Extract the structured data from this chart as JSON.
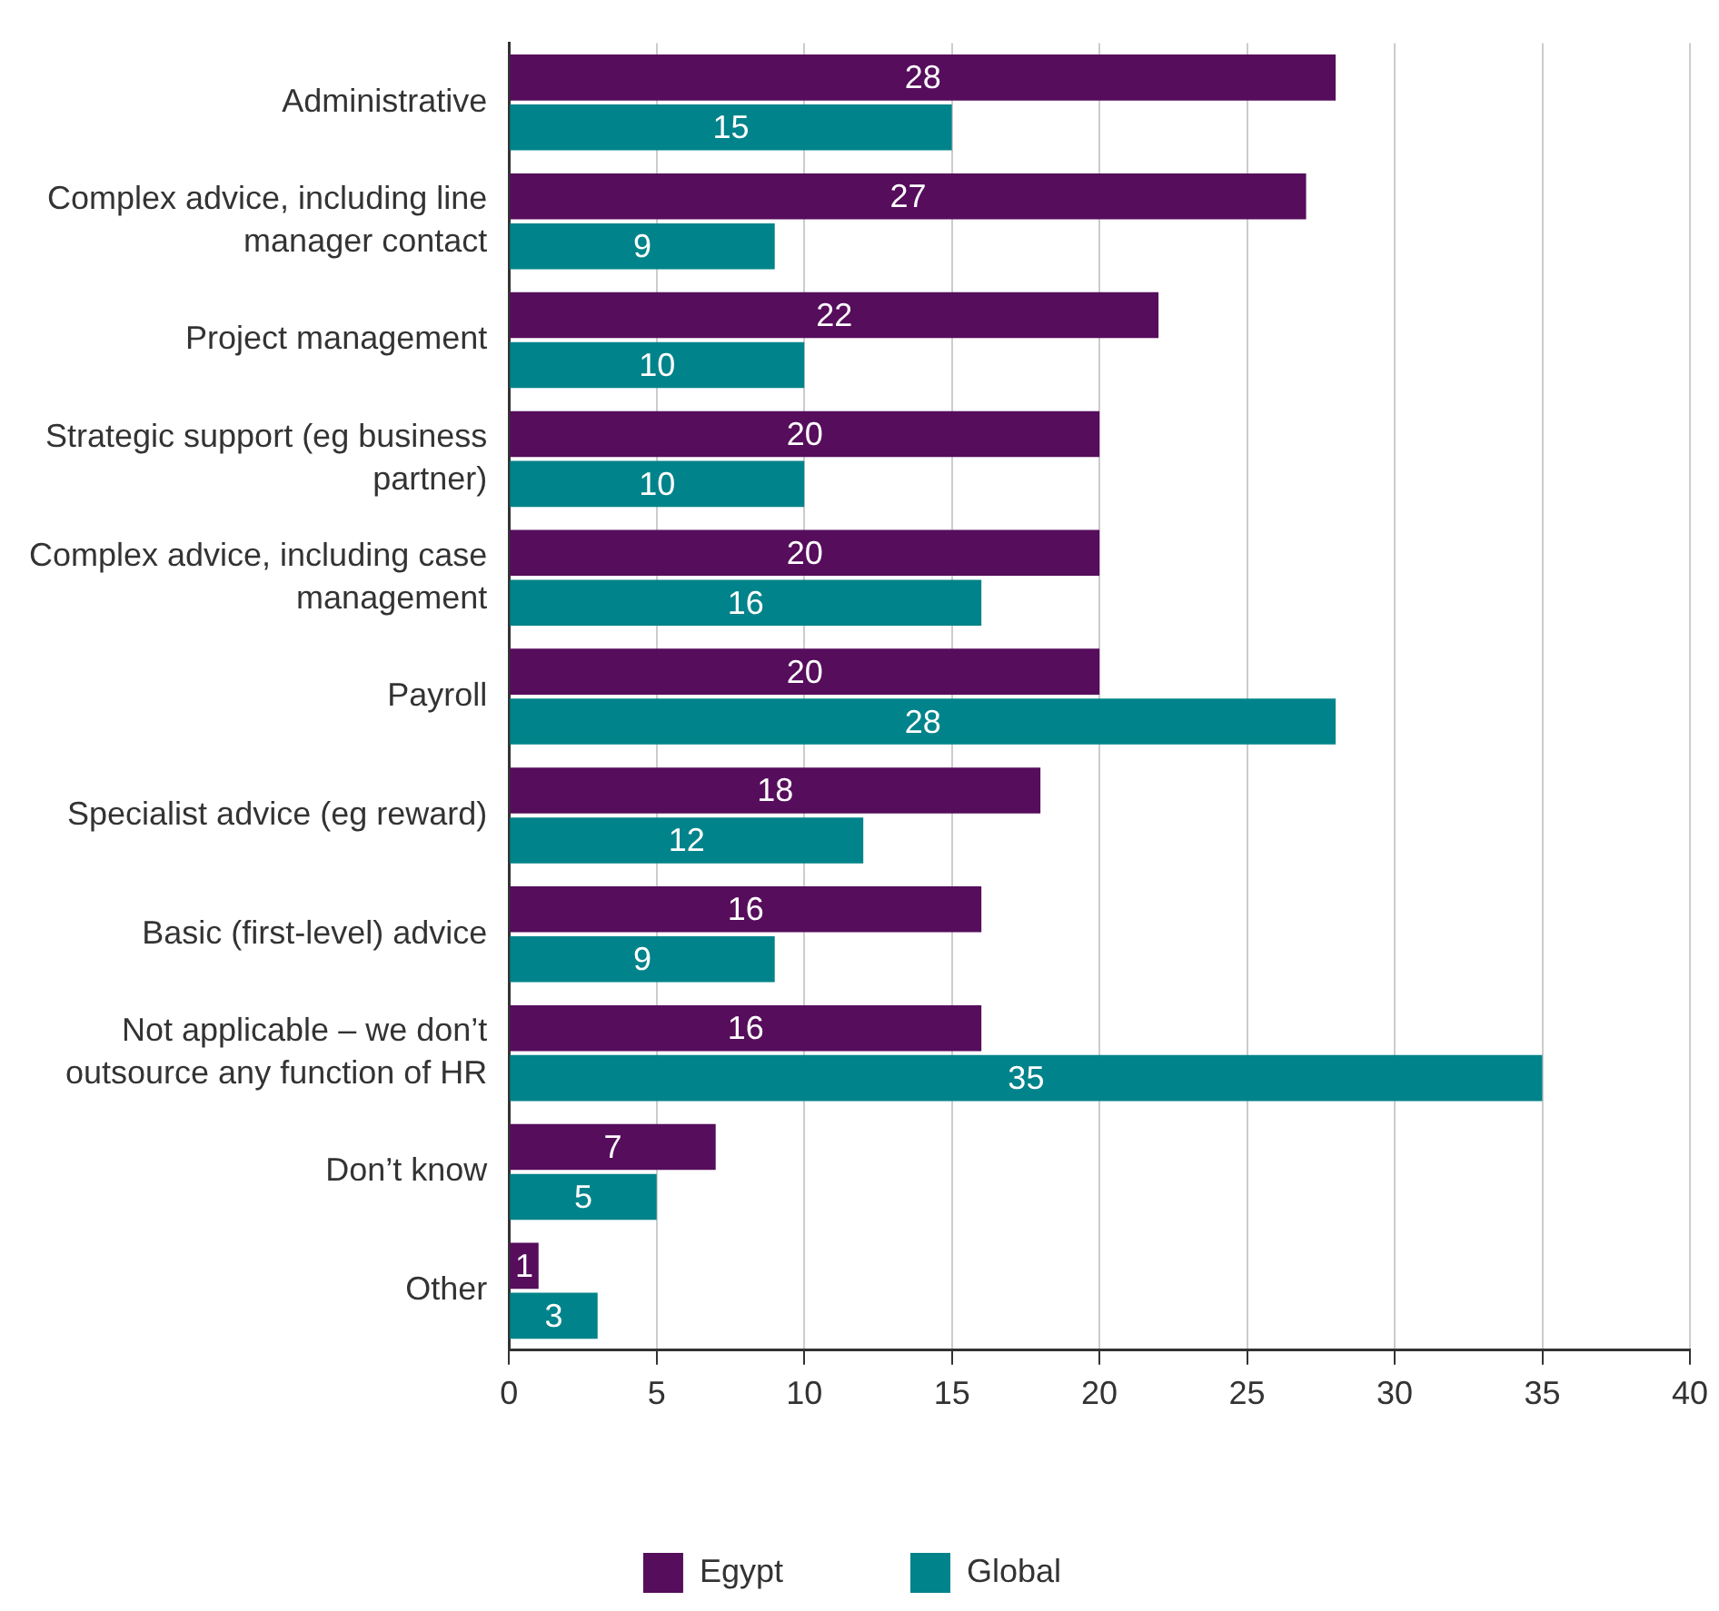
{
  "chart_data": {
    "type": "bar",
    "orientation": "horizontal",
    "categories": [
      "Administrative",
      "Complex advice, including line manager contact",
      "Project management",
      "Strategic support (eg business partner)",
      "Complex advice, including case management",
      "Payroll",
      "Specialist advice (eg reward)",
      "Basic (first-level) advice",
      "Not applicable – we don’t outsource any function of HR",
      "Don’t know",
      "Other"
    ],
    "series": [
      {
        "name": "Egypt",
        "color": "#560d5c",
        "values": [
          28,
          27,
          22,
          20,
          20,
          20,
          18,
          16,
          16,
          7,
          1
        ]
      },
      {
        "name": "Global",
        "color": "#00838a",
        "values": [
          15,
          9,
          10,
          10,
          16,
          28,
          12,
          9,
          35,
          5,
          3
        ]
      }
    ],
    "xlim": [
      0,
      40
    ],
    "xticks": [
      0,
      5,
      10,
      15,
      20,
      25,
      30,
      35,
      40
    ],
    "grid": "x",
    "legend": "bottom",
    "data_labels": true
  }
}
